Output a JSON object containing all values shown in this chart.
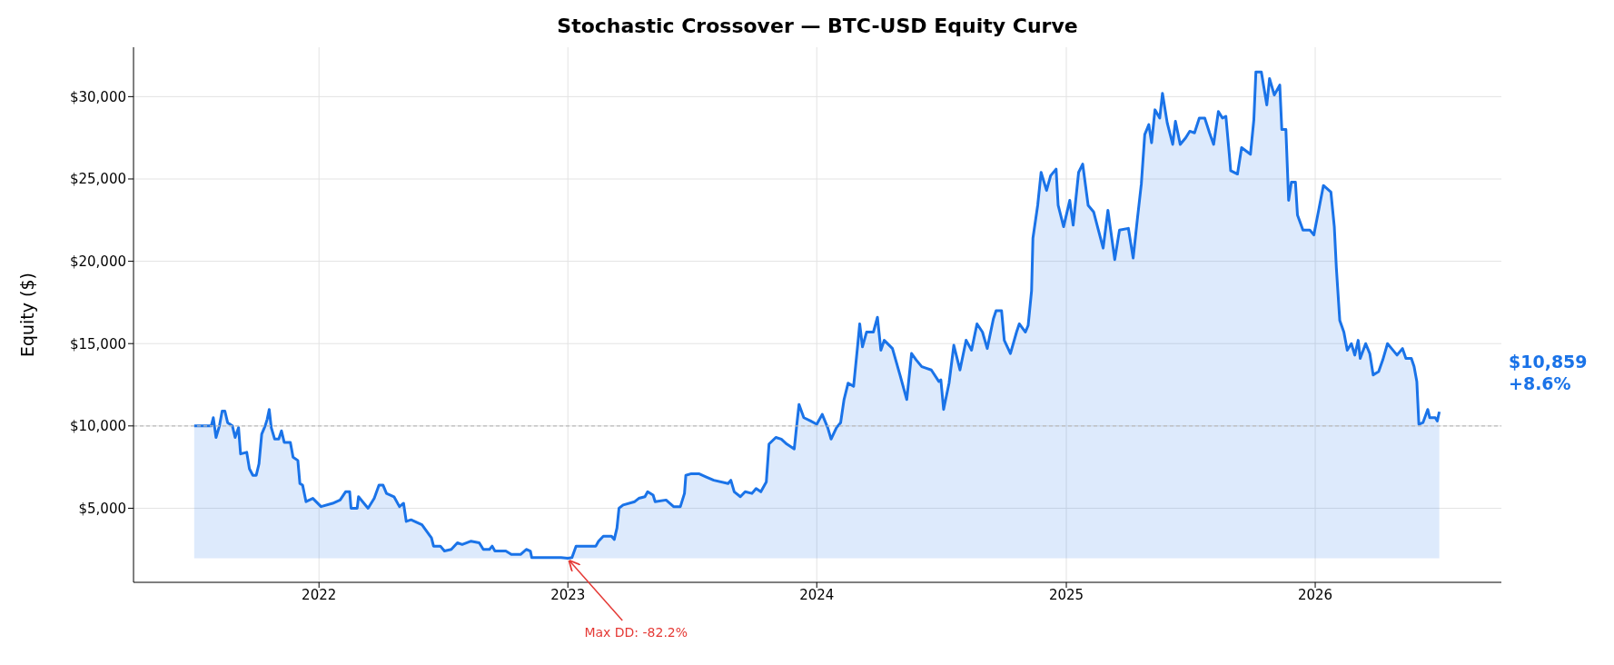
{
  "chart_data": {
    "type": "area",
    "title": "Stochastic Crossover — BTC-USD Equity Curve",
    "ylabel": "Equity ($)",
    "x": [
      "2021-07-02",
      "2021-07-27",
      "2021-07-30",
      "2021-08-03",
      "2021-08-08",
      "2021-08-12",
      "2021-08-16",
      "2021-08-20",
      "2021-08-27",
      "2021-08-31",
      "2021-09-05",
      "2021-09-08",
      "2021-09-17",
      "2021-09-21",
      "2021-09-26",
      "2021-10-01",
      "2021-10-05",
      "2021-10-09",
      "2021-10-14",
      "2021-10-17",
      "2021-10-20",
      "2021-10-23",
      "2021-10-28",
      "2021-11-03",
      "2021-11-07",
      "2021-11-11",
      "2021-11-20",
      "2021-11-24",
      "2021-12-01",
      "2021-12-04",
      "2021-12-08",
      "2021-12-13",
      "2021-12-23",
      "2022-01-04",
      "2022-01-21",
      "2022-02-01",
      "2022-02-09",
      "2022-02-15",
      "2022-02-17",
      "2022-02-26",
      "2022-02-28",
      "2022-03-06",
      "2022-03-14",
      "2022-03-23",
      "2022-03-30",
      "2022-04-05",
      "2022-04-10",
      "2022-04-21",
      "2022-04-29",
      "2022-05-05",
      "2022-05-09",
      "2022-05-16",
      "2022-06-01",
      "2022-06-08",
      "2022-06-15",
      "2022-06-18",
      "2022-06-28",
      "2022-07-04",
      "2022-07-14",
      "2022-07-23",
      "2022-07-30",
      "2022-08-12",
      "2022-08-24",
      "2022-08-30",
      "2022-09-08",
      "2022-09-12",
      "2022-09-16",
      "2022-10-02",
      "2022-10-10",
      "2022-10-24",
      "2022-11-01",
      "2022-11-07",
      "2022-11-09",
      "2022-11-30",
      "2022-12-22",
      "2023-01-01",
      "2023-01-07",
      "2023-01-13",
      "2023-01-25",
      "2023-01-31",
      "2023-02-11",
      "2023-02-15",
      "2023-02-22",
      "2023-03-06",
      "2023-03-10",
      "2023-03-14",
      "2023-03-17",
      "2023-03-23",
      "2023-04-09",
      "2023-04-15",
      "2023-04-24",
      "2023-04-28",
      "2023-05-06",
      "2023-05-09",
      "2023-05-25",
      "2023-06-05",
      "2023-06-15",
      "2023-06-21",
      "2023-06-23",
      "2023-07-01",
      "2023-07-12",
      "2023-07-23",
      "2023-08-03",
      "2023-08-24",
      "2023-08-28",
      "2023-09-02",
      "2023-09-11",
      "2023-09-18",
      "2023-09-28",
      "2023-10-04",
      "2023-10-11",
      "2023-10-19",
      "2023-10-23",
      "2023-11-02",
      "2023-11-10",
      "2023-11-18",
      "2023-11-29",
      "2023-12-02",
      "2023-12-06",
      "2023-12-13",
      "2023-12-23",
      "2024-01-01",
      "2024-01-09",
      "2024-01-17",
      "2024-01-22",
      "2024-01-30",
      "2024-02-05",
      "2024-02-10",
      "2024-02-16",
      "2024-02-24",
      "2024-03-01",
      "2024-03-04",
      "2024-03-08",
      "2024-03-14",
      "2024-03-24",
      "2024-03-30",
      "2024-04-04",
      "2024-04-09",
      "2024-04-21",
      "2024-05-02",
      "2024-05-12",
      "2024-05-19",
      "2024-05-26",
      "2024-06-03",
      "2024-06-17",
      "2024-06-28",
      "2024-07-01",
      "2024-07-05",
      "2024-07-13",
      "2024-07-20",
      "2024-07-29",
      "2024-08-07",
      "2024-08-15",
      "2024-08-23",
      "2024-08-31",
      "2024-09-07",
      "2024-09-16",
      "2024-09-20",
      "2024-09-28",
      "2024-10-02",
      "2024-10-11",
      "2024-10-20",
      "2024-10-24",
      "2024-11-02",
      "2024-11-06",
      "2024-11-11",
      "2024-11-13",
      "2024-11-20",
      "2024-11-25",
      "2024-12-03",
      "2024-12-09",
      "2024-12-17",
      "2024-12-20",
      "2024-12-28",
      "2025-01-06",
      "2025-01-11",
      "2025-01-19",
      "2025-01-25",
      "2025-02-02",
      "2025-02-10",
      "2025-02-24",
      "2025-03-03",
      "2025-03-13",
      "2025-03-20",
      "2025-04-02",
      "2025-04-09",
      "2025-04-15",
      "2025-04-21",
      "2025-04-26",
      "2025-05-02",
      "2025-05-06",
      "2025-05-11",
      "2025-05-18",
      "2025-05-22",
      "2025-05-29",
      "2025-06-06",
      "2025-06-10",
      "2025-06-17",
      "2025-06-25",
      "2025-07-01",
      "2025-07-08",
      "2025-07-15",
      "2025-07-23",
      "2025-07-30",
      "2025-08-05",
      "2025-08-12",
      "2025-08-18",
      "2025-08-23",
      "2025-08-28",
      "2025-08-30",
      "2025-09-09",
      "2025-09-15",
      "2025-09-28",
      "2025-10-03",
      "2025-10-06",
      "2025-10-14",
      "2025-10-22",
      "2025-10-26",
      "2025-11-02",
      "2025-11-10",
      "2025-11-13",
      "2025-11-19",
      "2025-11-23",
      "2025-11-27",
      "2025-12-03",
      "2025-12-06",
      "2025-12-14",
      "2025-12-24",
      "2025-12-30",
      "2026-01-07",
      "2026-01-13",
      "2026-01-24",
      "2026-01-29",
      "2026-02-01",
      "2026-02-06",
      "2026-02-12",
      "2026-02-17",
      "2026-02-23",
      "2026-02-28",
      "2026-03-05",
      "2026-03-08",
      "2026-03-16",
      "2026-03-22",
      "2026-03-27",
      "2026-04-04",
      "2026-04-10",
      "2026-04-17",
      "2026-04-23",
      "2026-05-01",
      "2026-05-09",
      "2026-05-14",
      "2026-05-22",
      "2026-05-26",
      "2026-05-30",
      "2026-06-02",
      "2026-06-08",
      "2026-06-15",
      "2026-06-18",
      "2026-06-26",
      "2026-06-29",
      "2026-07-02"
    ],
    "series": [
      {
        "color": "#1a73e8",
        "values": [
          10000,
          10000,
          10500,
          9300,
          10000,
          10900,
          10900,
          10200,
          10000,
          9300,
          9900,
          8300,
          8400,
          7400,
          7000,
          7000,
          7700,
          9500,
          10000,
          10400,
          11000,
          9900,
          9200,
          9200,
          9700,
          9000,
          9000,
          8100,
          7900,
          6500,
          6400,
          5400,
          5600,
          5100,
          5300,
          5500,
          6000,
          6000,
          5000,
          5000,
          5700,
          5400,
          5000,
          5600,
          6400,
          6400,
          5900,
          5700,
          5100,
          5300,
          4200,
          4300,
          4000,
          3600,
          3200,
          2700,
          2700,
          2400,
          2500,
          2900,
          2800,
          3000,
          2900,
          2500,
          2500,
          2700,
          2400,
          2400,
          2200,
          2200,
          2500,
          2400,
          2000,
          2000,
          2000,
          1960,
          2000,
          2700,
          2700,
          2700,
          2700,
          3000,
          3300,
          3300,
          3100,
          3800,
          5000,
          5200,
          5400,
          5600,
          5700,
          6000,
          5800,
          5400,
          5500,
          5100,
          5100,
          5900,
          7000,
          7100,
          7100,
          6900,
          6700,
          6500,
          6700,
          6000,
          5700,
          6000,
          5900,
          6200,
          6000,
          6600,
          8900,
          9300,
          9200,
          8900,
          8600,
          9800,
          11300,
          10500,
          10300,
          10100,
          10700,
          9900,
          9200,
          9900,
          10200,
          11600,
          12600,
          12400,
          14900,
          16200,
          14800,
          15700,
          15700,
          16600,
          14600,
          15200,
          14700,
          13100,
          11600,
          14400,
          14000,
          13600,
          13400,
          12700,
          12800,
          11000,
          12600,
          14900,
          13400,
          15200,
          14600,
          16200,
          15700,
          14700,
          16500,
          17000,
          17000,
          15200,
          14400,
          15700,
          16200,
          15700,
          16100,
          18200,
          21400,
          23400,
          25400,
          24300,
          25200,
          25600,
          23400,
          22100,
          23700,
          22200,
          25400,
          25900,
          23400,
          23000,
          20800,
          23100,
          20100,
          21900,
          22000,
          20200,
          22500,
          24700,
          27700,
          28300,
          27200,
          29200,
          28700,
          30200,
          28400,
          27100,
          28500,
          27100,
          27500,
          27900,
          27800,
          28700,
          28700,
          27800,
          27100,
          29100,
          28700,
          28800,
          26500,
          25500,
          25300,
          26900,
          26500,
          28600,
          31500,
          31500,
          29500,
          31100,
          30100,
          30700,
          28000,
          28000,
          23700,
          24800,
          24800,
          22800,
          21900,
          21900,
          21600,
          23300,
          24600,
          24200,
          22100,
          19600,
          16400,
          15700,
          14600,
          15000,
          14300,
          15200,
          14100,
          15000,
          14400,
          13100,
          13300,
          14000,
          15000,
          14700,
          14300,
          14700,
          14100,
          14100,
          13600,
          12700,
          10100,
          10200,
          11000,
          10500,
          10500,
          10300,
          10859
        ]
      }
    ],
    "xlim": [
      "2021-04-04",
      "2026-10-01"
    ],
    "xticks": [
      "2022",
      "2023",
      "2024",
      "2025",
      "2026"
    ],
    "ylim": [
      500,
      33000
    ],
    "yticks": [
      {
        "value": 5000,
        "label": "$5,000"
      },
      {
        "value": 10000,
        "label": "$10,000"
      },
      {
        "value": 15000,
        "label": "$15,000"
      },
      {
        "value": 20000,
        "label": "$20,000"
      },
      {
        "value": 25000,
        "label": "$25,000"
      },
      {
        "value": 30000,
        "label": "$30,000"
      }
    ],
    "grid": true,
    "ref_lines": [
      {
        "axis": "y",
        "value": 10000,
        "color": "#bbbbbb",
        "line_style": "dashed"
      }
    ],
    "annotations": [
      {
        "text": "Max DD: -82.2%",
        "x": "2023-01-01",
        "y": 1960
      },
      "$10,859\n+8.6%"
    ]
  }
}
